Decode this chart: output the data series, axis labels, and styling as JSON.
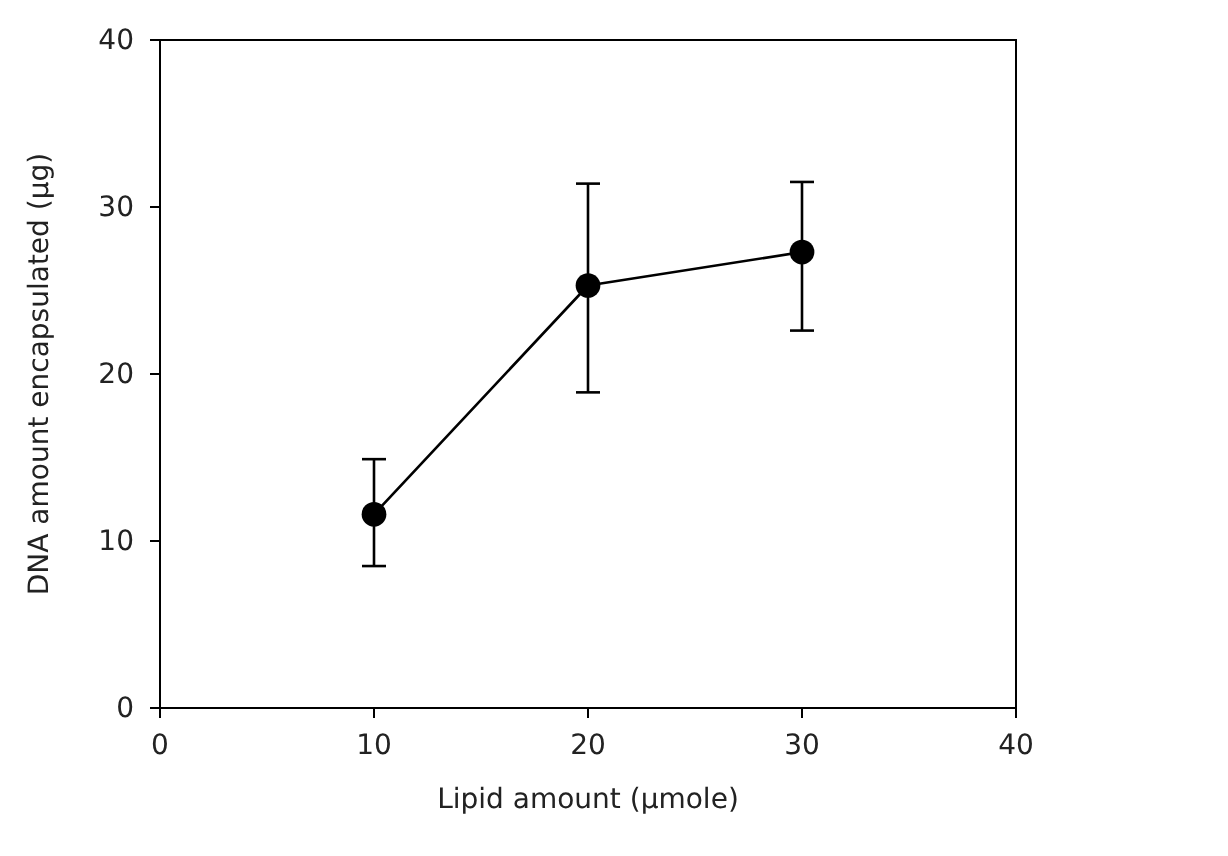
{
  "chart_data": {
    "type": "line",
    "xlabel": "Lipid amount (μmole)",
    "ylabel": "DNA amount encapsulated (μg)",
    "x": [
      10,
      20,
      30
    ],
    "series": [
      {
        "color": "#000000",
        "values": [
          11.6,
          25.3,
          27.3
        ],
        "errors": [
          [
            8.5,
            14.9
          ],
          [
            18.9,
            31.4
          ],
          [
            22.6,
            31.5
          ]
        ]
      }
    ],
    "xlim": [
      0,
      40
    ],
    "xticks": [
      0,
      10,
      20,
      30,
      40
    ],
    "ylim": [
      0,
      40
    ],
    "yticks": [
      0,
      10,
      20,
      30,
      40
    ],
    "marker": "circle",
    "line_style": "solid"
  }
}
